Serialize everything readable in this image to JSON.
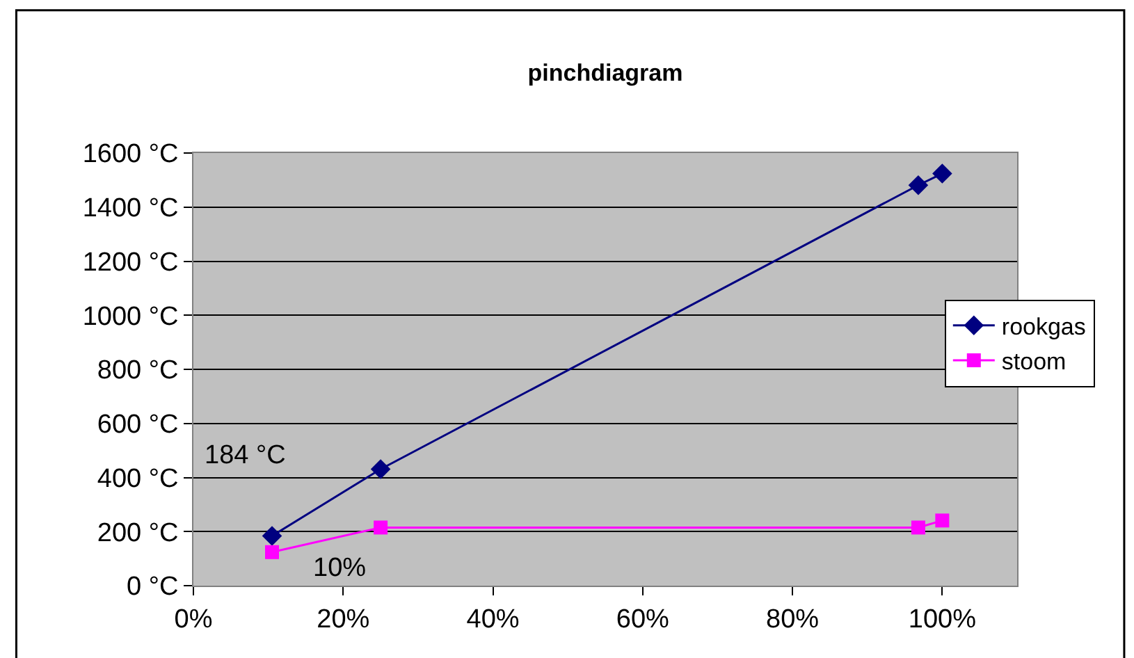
{
  "chart_data": {
    "type": "line",
    "title": "pinchdiagram",
    "x": [
      10.5,
      25,
      96.8,
      100
    ],
    "series": [
      {
        "name": "rookgas",
        "color": "#000080",
        "marker": "diamond",
        "values": [
          184,
          431,
          1481,
          1524
        ]
      },
      {
        "name": "stoom",
        "color": "#ff00ff",
        "marker": "square",
        "values": [
          124,
          215,
          215,
          241
        ]
      }
    ],
    "xlim": [
      0,
      110
    ],
    "xticks": [
      {
        "value": 0,
        "label": "0%"
      },
      {
        "value": 20,
        "label": "20%"
      },
      {
        "value": 40,
        "label": "40%"
      },
      {
        "value": 60,
        "label": "60%"
      },
      {
        "value": 80,
        "label": "80%"
      },
      {
        "value": 100,
        "label": "100%"
      }
    ],
    "ylim": [
      0,
      1600
    ],
    "yticks": [
      {
        "value": 0,
        "label": "0 °C"
      },
      {
        "value": 200,
        "label": "200 °C"
      },
      {
        "value": 400,
        "label": "400 °C"
      },
      {
        "value": 600,
        "label": "600 °C"
      },
      {
        "value": 800,
        "label": "800 °C"
      },
      {
        "value": 1000,
        "label": "1000 °C"
      },
      {
        "value": 1200,
        "label": "1200 °C"
      },
      {
        "value": 1400,
        "label": "1400 °C"
      },
      {
        "value": 1600,
        "label": "1600 °C"
      }
    ],
    "annotations": [
      "184 °C",
      "10%"
    ],
    "grid": "y",
    "legend": "right"
  }
}
